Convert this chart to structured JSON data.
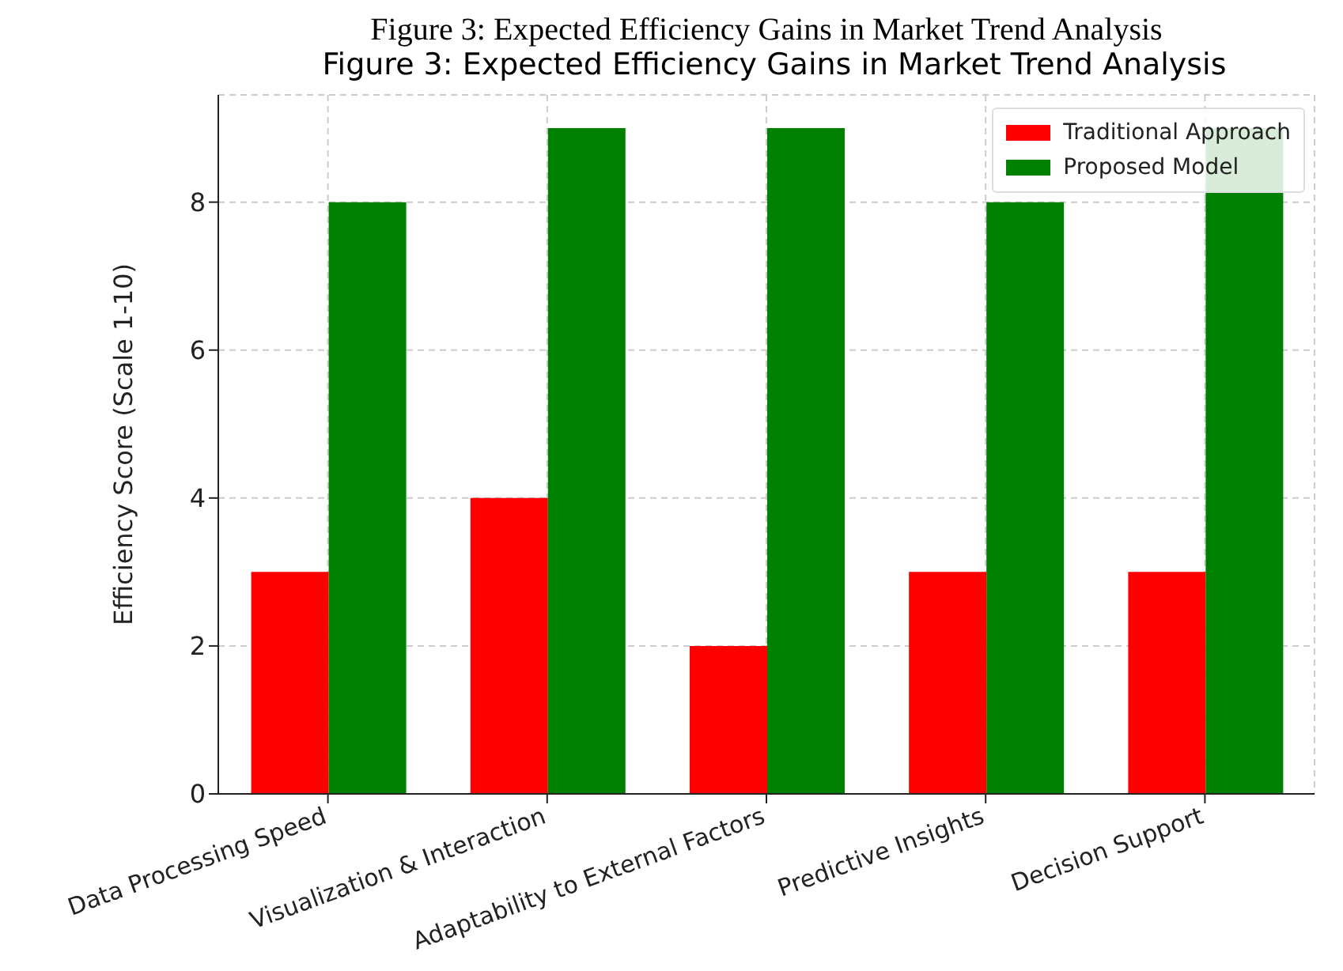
{
  "chart_data": {
    "type": "bar",
    "title": "Figure 3: Expected Efficiency Gains in Market Trend Analysis",
    "annotations": [
      "Figure 3: Expected Efficiency Gains in Market Trend Analysis"
    ],
    "ylabel": "Efficiency Score (Scale 1-10)",
    "categories": [
      "Data Processing Speed",
      "Visualization & Interaction",
      "Adaptability to External Factors",
      "Predictive Insights",
      "Decision Support"
    ],
    "series": [
      {
        "name": "Traditional Approach",
        "color": "#ff0000",
        "values": [
          3,
          4,
          2,
          3,
          3
        ]
      },
      {
        "name": "Proposed Model",
        "color": "#008000",
        "values": [
          8,
          9,
          9,
          8,
          9
        ]
      }
    ],
    "ylim": [
      0,
      9.45
    ],
    "yticks": [
      0,
      2,
      4,
      6,
      8
    ],
    "grid": true,
    "legend": "top right"
  }
}
